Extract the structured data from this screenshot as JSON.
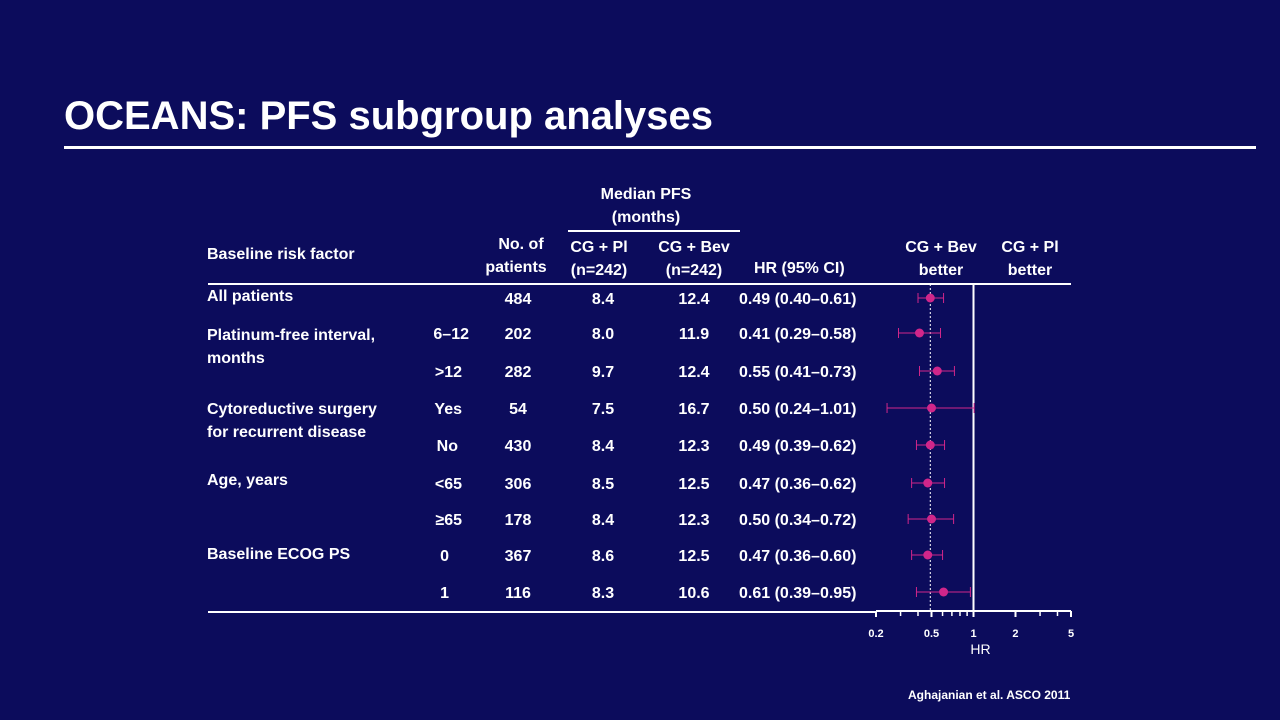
{
  "slide": {
    "title": "OCEANS: PFS subgroup analyses",
    "source": "Aghajanian et al. ASCO 2011"
  },
  "headers": {
    "median_pfs_line1": "Median PFS",
    "median_pfs_line2": "(months)",
    "baseline_risk_factor": "Baseline risk factor",
    "no_of_line1": "No. of",
    "no_of_line2": "patients",
    "cg_pl_line1": "CG + Pl",
    "cg_pl_line2": "(n=242)",
    "cg_bev_line1": "CG + Bev",
    "cg_bev_line2": "(n=242)",
    "hr_ci": "HR (95% CI)",
    "bev_better_line1": "CG + Bev",
    "bev_better_line2": "better",
    "pl_better_line1": "CG + Pl",
    "pl_better_line2": "better"
  },
  "groups": [
    {
      "label_line1": "All patients",
      "label_line2": ""
    },
    {
      "label_line1": "Platinum-free interval,",
      "label_line2": "months"
    },
    {
      "label_line1": "Cytoreductive surgery",
      "label_line2": "for recurrent disease"
    },
    {
      "label_line1": "Age, years",
      "label_line2": ""
    },
    {
      "label_line1": "Baseline ECOG PS",
      "label_line2": ""
    }
  ],
  "rows": [
    {
      "subgroup": "",
      "n": "484",
      "pl": "8.4",
      "bev": "12.4",
      "hr_text": "0.49 (0.40–0.61)"
    },
    {
      "subgroup": "6–12",
      "n": "202",
      "pl": "8.0",
      "bev": "11.9",
      "hr_text": "0.41 (0.29–0.58)"
    },
    {
      "subgroup": ">12",
      "n": "282",
      "pl": "9.7",
      "bev": "12.4",
      "hr_text": "0.55 (0.41–0.73)"
    },
    {
      "subgroup": "Yes",
      "n": "54",
      "pl": "7.5",
      "bev": "16.7",
      "hr_text": "0.50 (0.24–1.01)"
    },
    {
      "subgroup": "No",
      "n": "430",
      "pl": "8.4",
      "bev": "12.3",
      "hr_text": "0.49 (0.39–0.62)"
    },
    {
      "subgroup": "<65",
      "n": "306",
      "pl": "8.5",
      "bev": "12.5",
      "hr_text": "0.47 (0.36–0.62)"
    },
    {
      "subgroup": "≥65",
      "n": "178",
      "pl": "8.4",
      "bev": "12.3",
      "hr_text": "0.50 (0.34–0.72)"
    },
    {
      "subgroup": "0",
      "n": "367",
      "pl": "8.6",
      "bev": "12.5",
      "hr_text": "0.47 (0.36–0.60)"
    },
    {
      "subgroup": "1",
      "n": "116",
      "pl": "8.3",
      "bev": "10.6",
      "hr_text": "0.61 (0.39–0.95)"
    }
  ],
  "chart_data": {
    "type": "forest",
    "x_scale": "log",
    "xlabel": "HR",
    "xlim": [
      0.2,
      5
    ],
    "x_ticks": [
      0.2,
      0.5,
      1,
      2,
      5
    ],
    "x_tick_labels": [
      "0.2",
      "0.5",
      "1",
      "2",
      "5"
    ],
    "x_minor_ticks": [
      0.3,
      0.4,
      0.6,
      0.7,
      0.8,
      0.9,
      3,
      4
    ],
    "reference_line": 1,
    "overall_hr_line": 0.49,
    "points": [
      {
        "hr": 0.49,
        "lo": 0.4,
        "hi": 0.61
      },
      {
        "hr": 0.41,
        "lo": 0.29,
        "hi": 0.58
      },
      {
        "hr": 0.55,
        "lo": 0.41,
        "hi": 0.73
      },
      {
        "hr": 0.5,
        "lo": 0.24,
        "hi": 1.01
      },
      {
        "hr": 0.49,
        "lo": 0.39,
        "hi": 0.62
      },
      {
        "hr": 0.47,
        "lo": 0.36,
        "hi": 0.62
      },
      {
        "hr": 0.5,
        "lo": 0.34,
        "hi": 0.72
      },
      {
        "hr": 0.47,
        "lo": 0.36,
        "hi": 0.6
      },
      {
        "hr": 0.61,
        "lo": 0.39,
        "hi": 0.95
      }
    ],
    "marker_color": "#d0268a",
    "line_color": "#ffffff"
  }
}
